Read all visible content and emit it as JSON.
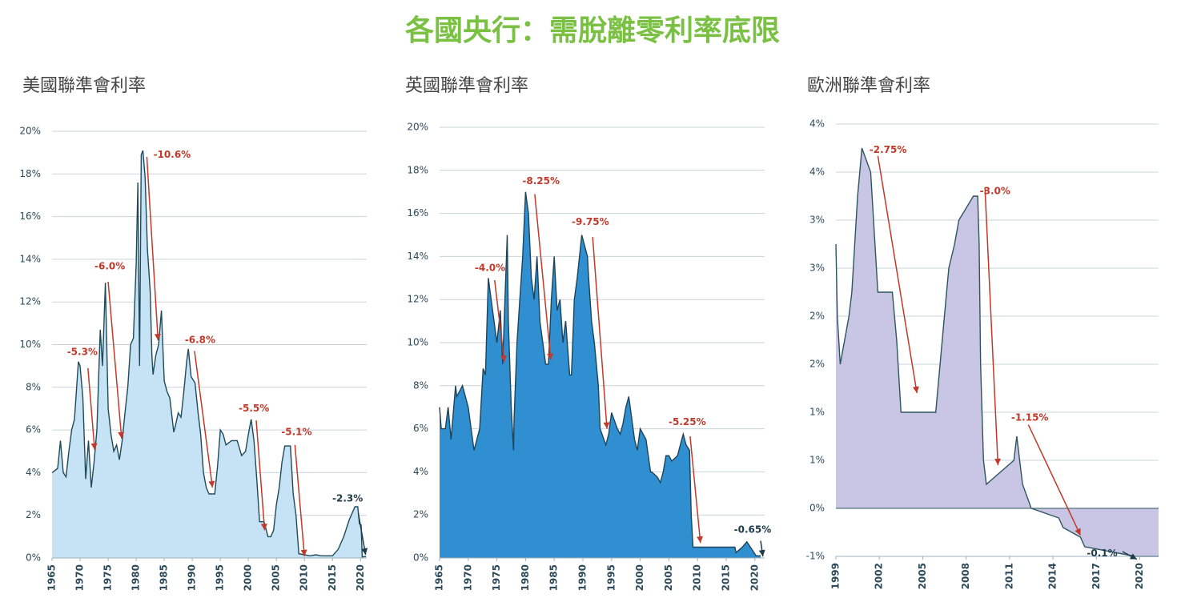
{
  "title": "各國央行：需脫離零利率底限",
  "chart_data": [
    {
      "type": "area",
      "title": "美國聯準會利率",
      "fill": "#c6e2f5",
      "color": "#1e4a5a",
      "x": [
        1965,
        1966,
        1966.5,
        1967,
        1967.5,
        1968,
        1968.5,
        1969,
        1969.7,
        1970,
        1970.5,
        1971,
        1971.5,
        1972,
        1972.5,
        1973,
        1973.6,
        1974,
        1974.5,
        1975,
        1975.5,
        1976,
        1976.5,
        1977,
        1977.5,
        1978,
        1978.5,
        1979,
        1979.5,
        1980,
        1980.3,
        1980.6,
        1980.9,
        1981.2,
        1981.6,
        1982,
        1982.5,
        1982.8,
        1983,
        1983.5,
        1984,
        1984.5,
        1985,
        1985.5,
        1986,
        1986.7,
        1987,
        1987.5,
        1988,
        1988.5,
        1989,
        1989.3,
        1989.8,
        1990.5,
        1991,
        1991.5,
        1992,
        1992.5,
        1993,
        1994,
        1994.5,
        1995,
        1995.5,
        1996,
        1997,
        1998,
        1998.8,
        1999.5,
        2000,
        2000.5,
        2001,
        2001.5,
        2002,
        2002.8,
        2003.5,
        2004,
        2004.5,
        2005,
        2005.5,
        2006,
        2006.5,
        2007.5,
        2008,
        2008.5,
        2009,
        2010,
        2011,
        2012,
        2013,
        2014,
        2015,
        2016,
        2017,
        2018,
        2019,
        2019.5,
        2019.8,
        2020.1,
        2020.3,
        2021
      ],
      "values": [
        4.0,
        4.2,
        5.5,
        4.0,
        3.8,
        5.0,
        6.0,
        6.5,
        9.2,
        9.0,
        7.5,
        3.7,
        5.5,
        3.3,
        4.5,
        6.0,
        10.7,
        9.0,
        12.9,
        7.0,
        5.8,
        5.0,
        5.3,
        4.6,
        5.5,
        6.8,
        8.0,
        10.0,
        10.3,
        13.8,
        17.6,
        9.0,
        18.9,
        19.1,
        17.8,
        14.5,
        12.5,
        9.5,
        8.6,
        9.5,
        10.0,
        11.6,
        8.3,
        7.8,
        7.5,
        5.9,
        6.2,
        6.8,
        6.6,
        7.8,
        9.2,
        9.8,
        8.5,
        8.2,
        6.9,
        5.8,
        4.0,
        3.3,
        3.0,
        3.0,
        4.3,
        6.0,
        5.8,
        5.3,
        5.5,
        5.5,
        4.8,
        5.0,
        5.8,
        6.5,
        5.5,
        3.7,
        1.7,
        1.7,
        1.0,
        1.0,
        1.3,
        2.5,
        3.3,
        4.5,
        5.25,
        5.25,
        3.0,
        2.0,
        0.2,
        0.15,
        0.1,
        0.15,
        0.1,
        0.1,
        0.1,
        0.4,
        1.0,
        1.8,
        2.4,
        2.4,
        1.6,
        1.55,
        0.05,
        0.08
      ],
      "xlim": [
        1965,
        2021.1
      ],
      "xticks": [
        1965,
        1970,
        1975,
        1980,
        1985,
        1990,
        1995,
        2000,
        2005,
        2010,
        2015,
        2020
      ],
      "ylim": [
        0,
        20
      ],
      "yticks": [
        {
          "value": 0,
          "label": "0%"
        },
        {
          "value": 2,
          "label": "2%"
        },
        {
          "value": 4,
          "label": "4%"
        },
        {
          "value": 6,
          "label": "6%"
        },
        {
          "value": 8,
          "label": "8%"
        },
        {
          "value": 10,
          "label": "10%"
        },
        {
          "value": 12,
          "label": "12%"
        },
        {
          "value": 14,
          "label": "14%"
        },
        {
          "value": 16,
          "label": "16%"
        },
        {
          "value": 18,
          "label": "18%"
        },
        {
          "value": 20,
          "label": "20%"
        }
      ],
      "grid": true,
      "annotations": [
        {
          "text": "-5.3%",
          "x": 1970.4,
          "y": 9.64,
          "from": [
            1971.4,
            8.9
          ],
          "to": [
            1972.6,
            5.07
          ],
          "color": "#c0392b"
        },
        {
          "text": "-6.0%",
          "x": 1975.3,
          "y": 13.66,
          "from": [
            1975.0,
            12.95
          ],
          "to": [
            1977.4,
            5.6
          ],
          "color": "#c0392b"
        },
        {
          "text": "-10.6%",
          "x": 1986.4,
          "y": 18.9,
          "from": [
            1981.9,
            18.8
          ],
          "to": [
            1983.9,
            10.2
          ],
          "color": "#c0392b"
        },
        {
          "text": "-6.8%",
          "x": 1991.4,
          "y": 10.2,
          "from": [
            1990.4,
            9.7
          ],
          "to": [
            1993.6,
            3.3
          ],
          "color": "#c0392b"
        },
        {
          "text": "-5.5%",
          "x": 2001.0,
          "y": 7.0,
          "from": [
            2001.4,
            6.45
          ],
          "to": [
            2002.9,
            1.3
          ],
          "color": "#c0392b"
        },
        {
          "text": "-5.1%",
          "x": 2008.6,
          "y": 5.9,
          "from": [
            2008.3,
            5.3
          ],
          "to": [
            2010.0,
            0.08
          ],
          "color": "#c0392b"
        },
        {
          "text": "-2.3%",
          "x": 2017.7,
          "y": 2.78,
          "from": [
            2019.6,
            2.1
          ],
          "to": [
            2020.9,
            0.15
          ],
          "color": "#1d3b4a"
        }
      ]
    },
    {
      "type": "area",
      "title": "英國聯準會利率",
      "fill": "#2f8fd0",
      "color": "#1d4458",
      "x": [
        1965,
        1965.3,
        1966,
        1966.5,
        1967,
        1967.8,
        1968,
        1969,
        1970,
        1971,
        1972,
        1972.6,
        1973,
        1973.5,
        1974,
        1975,
        1975.6,
        1976,
        1976.8,
        1977,
        1977.5,
        1977.9,
        1978,
        1978.5,
        1979,
        1979.5,
        1980,
        1980.5,
        1981,
        1981.5,
        1982,
        1982.5,
        1983,
        1983.5,
        1984,
        1984.5,
        1985,
        1985.5,
        1986,
        1986.5,
        1987,
        1987.7,
        1988,
        1988.5,
        1989,
        1989.8,
        1990.8,
        1991,
        1991.5,
        1992,
        1992.7,
        1993,
        1994,
        1994.5,
        1995,
        1996,
        1996.5,
        1997,
        1997.5,
        1998,
        1998.5,
        1999,
        1999.5,
        2000,
        2001,
        2001.8,
        2002,
        2003,
        2003.5,
        2004,
        2004.5,
        2005,
        2005.5,
        2006.5,
        2007,
        2007.5,
        2008,
        2008.6,
        2008.9,
        2009.2,
        2016.5,
        2016.7,
        2017.8,
        2018.6,
        2020.2,
        2021
      ],
      "values": [
        7.0,
        6.0,
        6.0,
        7.0,
        5.5,
        8.0,
        7.5,
        8.0,
        7.0,
        5.0,
        6.0,
        8.8,
        8.5,
        13.0,
        12.0,
        10.0,
        11.5,
        9.0,
        15.0,
        11.0,
        7.0,
        5.0,
        6.5,
        10.0,
        12.0,
        14.0,
        17.0,
        16.0,
        13.0,
        12.0,
        14.0,
        11.0,
        10.0,
        9.0,
        9.0,
        12.0,
        14.0,
        11.5,
        12.0,
        10.0,
        11.0,
        8.5,
        8.5,
        12.0,
        13.0,
        15.0,
        14.0,
        13.0,
        11.0,
        10.0,
        8.0,
        6.0,
        5.25,
        5.75,
        6.75,
        6.0,
        5.75,
        6.25,
        7.0,
        7.5,
        6.5,
        5.5,
        5.0,
        6.0,
        5.5,
        4.0,
        4.0,
        3.75,
        3.5,
        4.0,
        4.75,
        4.75,
        4.5,
        4.75,
        5.25,
        5.75,
        5.25,
        5.0,
        2.0,
        0.5,
        0.5,
        0.25,
        0.5,
        0.75,
        0.1,
        0.1
      ],
      "xlim": [
        1965,
        2021.7
      ],
      "xticks": [
        1965,
        1970,
        1975,
        1980,
        1985,
        1990,
        1995,
        2000,
        2005,
        2010,
        2015,
        2020
      ],
      "ylim": [
        0,
        20
      ],
      "yticks": [
        {
          "value": 0,
          "label": "0%"
        },
        {
          "value": 2,
          "label": "2%"
        },
        {
          "value": 4,
          "label": "4%"
        },
        {
          "value": 6,
          "label": "6%"
        },
        {
          "value": 8,
          "label": "8%"
        },
        {
          "value": 10,
          "label": "10%"
        },
        {
          "value": 12,
          "label": "12%"
        },
        {
          "value": 14,
          "label": "14%"
        },
        {
          "value": 16,
          "label": "16%"
        },
        {
          "value": 18,
          "label": "18%"
        },
        {
          "value": 20,
          "label": "20%"
        }
      ],
      "grid": true,
      "annotations": [
        {
          "text": "-4.0%",
          "x": 1973.8,
          "y": 13.46,
          "from": [
            1974.6,
            12.9
          ],
          "to": [
            1976.3,
            9.1
          ],
          "color": "#c0392b"
        },
        {
          "text": "-8.25%",
          "x": 1982.7,
          "y": 17.5,
          "from": [
            1981.6,
            16.9
          ],
          "to": [
            1984.4,
            9.2
          ],
          "color": "#c0392b"
        },
        {
          "text": "-9.75%",
          "x": 1991.3,
          "y": 15.6,
          "from": [
            1991.7,
            14.9
          ],
          "to": [
            1994.2,
            6.0
          ],
          "color": "#c0392b"
        },
        {
          "text": "-5.25%",
          "x": 2008.2,
          "y": 6.3,
          "from": [
            2008.7,
            5.65
          ],
          "to": [
            2010.5,
            0.7
          ],
          "color": "#c0392b"
        },
        {
          "text": "-0.65%",
          "x": 2019.6,
          "y": 1.3,
          "from": [
            2021.0,
            0.8
          ],
          "to": [
            2021.4,
            0.07
          ],
          "color": "#1d3b4a"
        }
      ]
    },
    {
      "type": "area",
      "title": "歐洲聯準會利率",
      "fill": "#c8c6e4",
      "color": "#2d5560",
      "x": [
        1999.0,
        1999.1,
        1999.3,
        1999.9,
        2000.1,
        2000.3,
        2000.5,
        2000.8,
        2001.4,
        2001.7,
        2001.9,
        2002.9,
        2003.2,
        2003.5,
        2005.9,
        2006.2,
        2006.5,
        2006.8,
        2007.2,
        2007.5,
        2008.5,
        2008.8,
        2008.9,
        2009.0,
        2009.2,
        2009.4,
        2011.3,
        2011.5,
        2011.9,
        2012.5,
        2014.4,
        2014.7,
        2015.9,
        2016.2,
        2019.7,
        2021.3
      ],
      "values": [
        2.75,
        2.0,
        1.5,
        2.0,
        2.25,
        2.75,
        3.25,
        3.75,
        3.5,
        2.75,
        2.25,
        2.25,
        1.75,
        1.0,
        1.0,
        1.5,
        2.0,
        2.5,
        2.75,
        3.0,
        3.25,
        3.25,
        2.75,
        1.5,
        0.5,
        0.25,
        0.5,
        0.75,
        0.25,
        0.0,
        -0.1,
        -0.2,
        -0.3,
        -0.4,
        -0.5,
        -0.5
      ],
      "xlim": [
        1999,
        2021.3
      ],
      "xticks": [
        1999,
        2002,
        2005,
        2008,
        2011,
        2014,
        2017,
        2020
      ],
      "ylim": [
        -0.5,
        4
      ],
      "yticks": [
        {
          "value": -0.5,
          "label": "-1%"
        },
        {
          "value": 0,
          "label": "0%"
        },
        {
          "value": 0.5,
          "label": "1%"
        },
        {
          "value": 1,
          "label": "1%"
        },
        {
          "value": 1.5,
          "label": "2%"
        },
        {
          "value": 2,
          "label": "2%"
        },
        {
          "value": 2.5,
          "label": "3%"
        },
        {
          "value": 3,
          "label": "3%"
        },
        {
          "value": 3.5,
          "label": "4%"
        },
        {
          "value": 4,
          "label": "4%"
        }
      ],
      "grid": true,
      "annotations": [
        {
          "text": "-2.75%",
          "x": 2002.6,
          "y": 3.73,
          "from": [
            2001.9,
            3.67
          ],
          "to": [
            2004.6,
            1.2
          ],
          "color": "#c0392b"
        },
        {
          "text": "-3.0%",
          "x": 2010.0,
          "y": 3.3,
          "from": [
            2009.3,
            3.34
          ],
          "to": [
            2010.2,
            0.45
          ],
          "color": "#c0392b"
        },
        {
          "text": "-1.15%",
          "x": 2012.4,
          "y": 0.94,
          "from": [
            2012.3,
            0.87
          ],
          "to": [
            2015.9,
            -0.28
          ],
          "color": "#c0392b"
        },
        {
          "text": "-0.1%",
          "x": 2017.4,
          "y": -0.47,
          "from": [
            2018.8,
            -0.45
          ],
          "to": [
            2019.8,
            -0.53
          ],
          "color": "#1d3b4a"
        }
      ]
    }
  ]
}
